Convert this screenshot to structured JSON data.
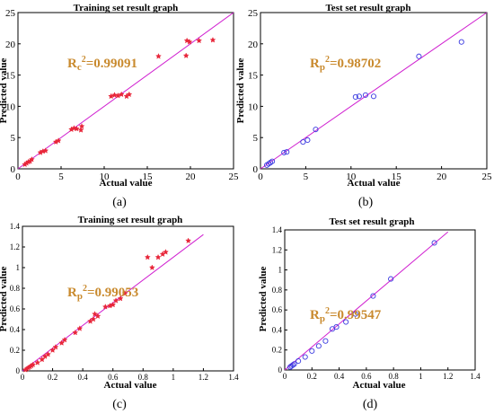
{
  "figure": {
    "captions": [
      "(a)",
      "(b)",
      "(c)",
      "(d)"
    ]
  },
  "colors": {
    "fit_line": "#d020d0",
    "train_marker": "#e8263a",
    "test_marker": "#3a3ae0",
    "r2_text": "#c98a2e"
  },
  "panels": [
    {
      "caption": "(a)",
      "r2_base": "R",
      "r2_sub": "c",
      "r2_value": "=0.99091"
    },
    {
      "caption": "(b)",
      "r2_base": "R",
      "r2_sub": "p",
      "r2_value": "=0.98702"
    },
    {
      "caption": "(c)",
      "r2_base": "R",
      "r2_sub": "p",
      "r2_value": "=0.99053"
    },
    {
      "caption": "(d)",
      "r2_base": "R",
      "r2_sub": "p",
      "r2_value": "=0.99547"
    }
  ],
  "chart_data": [
    {
      "type": "scatter",
      "title": "Training set result graph",
      "xlabel": "Actual value",
      "ylabel": "Predicted value",
      "xlim": [
        0,
        25
      ],
      "ylim": [
        0,
        25
      ],
      "xticks": [
        "0",
        "5",
        "10",
        "15",
        "20",
        "25"
      ],
      "yticks": [
        "0",
        "5",
        "10",
        "15",
        "20",
        "25"
      ],
      "marker": "star",
      "annotation": "Rc^2=0.99091",
      "fit_line": {
        "x0": 0,
        "y0": 0,
        "x1": 25,
        "y1": 25
      },
      "points": [
        [
          0.8,
          0.7
        ],
        [
          1.0,
          0.9
        ],
        [
          1.2,
          1.1
        ],
        [
          1.4,
          1.2
        ],
        [
          1.6,
          1.5
        ],
        [
          2.6,
          2.6
        ],
        [
          2.9,
          2.8
        ],
        [
          3.2,
          2.9
        ],
        [
          4.4,
          4.3
        ],
        [
          4.7,
          4.5
        ],
        [
          6.2,
          6.3
        ],
        [
          6.5,
          6.5
        ],
        [
          6.8,
          6.4
        ],
        [
          7.3,
          6.2
        ],
        [
          7.4,
          6.8
        ],
        [
          10.8,
          11.6
        ],
        [
          11.2,
          11.8
        ],
        [
          11.6,
          11.7
        ],
        [
          12.0,
          11.9
        ],
        [
          12.6,
          11.6
        ],
        [
          12.9,
          11.9
        ],
        [
          16.3,
          18.0
        ],
        [
          19.5,
          18.1
        ],
        [
          19.6,
          20.5
        ],
        [
          19.9,
          20.3
        ],
        [
          21.0,
          20.5
        ],
        [
          22.6,
          20.6
        ]
      ]
    },
    {
      "type": "scatter",
      "title": "Test set result graph",
      "xlabel": "Actual value",
      "ylabel": "Predicted value",
      "xlim": [
        0,
        25
      ],
      "ylim": [
        0,
        25
      ],
      "xticks": [
        "0",
        "5",
        "10",
        "15",
        "20",
        "25"
      ],
      "yticks": [
        "0",
        "5",
        "10",
        "15",
        "20",
        "25"
      ],
      "marker": "circle",
      "annotation": "Rp^2=0.98702",
      "fit_line": {
        "x0": 0,
        "y0": 0,
        "x1": 25,
        "y1": 25
      },
      "points": [
        [
          0.7,
          0.6
        ],
        [
          0.9,
          0.8
        ],
        [
          1.1,
          1.0
        ],
        [
          1.3,
          1.2
        ],
        [
          2.6,
          2.6
        ],
        [
          2.9,
          2.7
        ],
        [
          4.7,
          4.3
        ],
        [
          5.2,
          4.6
        ],
        [
          6.1,
          6.3
        ],
        [
          10.5,
          11.5
        ],
        [
          10.9,
          11.6
        ],
        [
          11.6,
          11.8
        ],
        [
          12.5,
          11.6
        ],
        [
          17.5,
          18.0
        ],
        [
          22.2,
          20.3
        ]
      ]
    },
    {
      "type": "scatter",
      "title": "Training set result graph",
      "xlabel": "Actual value",
      "ylabel": "Predicted value",
      "xlim": [
        0,
        1.4
      ],
      "ylim": [
        0,
        1.4
      ],
      "xticks": [
        "0",
        "0.2",
        "0.4",
        "0.6",
        "0.8",
        "1",
        "1.2",
        "1.4"
      ],
      "yticks": [
        "0",
        "0.2",
        "0.4",
        "0.6",
        "0.8",
        "1",
        "1.2",
        "1.4"
      ],
      "marker": "star",
      "annotation": "Rp^2=0.99053",
      "fit_line": {
        "x0": 0,
        "y0": 0,
        "x1": 1.2,
        "y1": 1.32
      },
      "points": [
        [
          0.02,
          0.01
        ],
        [
          0.03,
          0.02
        ],
        [
          0.04,
          0.03
        ],
        [
          0.05,
          0.04
        ],
        [
          0.06,
          0.05
        ],
        [
          0.07,
          0.06
        ],
        [
          0.1,
          0.08
        ],
        [
          0.13,
          0.11
        ],
        [
          0.15,
          0.14
        ],
        [
          0.17,
          0.16
        ],
        [
          0.2,
          0.2
        ],
        [
          0.22,
          0.23
        ],
        [
          0.26,
          0.27
        ],
        [
          0.28,
          0.3
        ],
        [
          0.35,
          0.37
        ],
        [
          0.38,
          0.41
        ],
        [
          0.45,
          0.48
        ],
        [
          0.47,
          0.5
        ],
        [
          0.48,
          0.55
        ],
        [
          0.5,
          0.53
        ],
        [
          0.55,
          0.62
        ],
        [
          0.58,
          0.63
        ],
        [
          0.6,
          0.64
        ],
        [
          0.62,
          0.68
        ],
        [
          0.65,
          0.7
        ],
        [
          0.68,
          0.75
        ],
        [
          0.83,
          1.1
        ],
        [
          0.86,
          1.0
        ],
        [
          0.9,
          1.1
        ],
        [
          0.93,
          1.13
        ],
        [
          0.95,
          1.15
        ],
        [
          1.1,
          1.26
        ]
      ]
    },
    {
      "type": "scatter",
      "title": "Test set result graph",
      "xlabel": "Actual value",
      "ylabel": "Predicted value",
      "xlim": [
        0,
        1.4
      ],
      "ylim": [
        0,
        1.4
      ],
      "xticks": [
        "0",
        "0.2",
        "0.4",
        "0.6",
        "0.8",
        "1",
        "1.2",
        "1.4"
      ],
      "yticks": [
        "0",
        "0.2",
        "0.4",
        "0.6",
        "0.8",
        "1",
        "1.2",
        "1.4"
      ],
      "marker": "circle",
      "annotation": "Rp^2=0.99547",
      "fit_line": {
        "x0": 0,
        "y0": 0,
        "x1": 1.2,
        "y1": 1.38
      },
      "points": [
        [
          0.04,
          0.03
        ],
        [
          0.05,
          0.04
        ],
        [
          0.06,
          0.05
        ],
        [
          0.07,
          0.06
        ],
        [
          0.1,
          0.09
        ],
        [
          0.15,
          0.13
        ],
        [
          0.2,
          0.19
        ],
        [
          0.25,
          0.24
        ],
        [
          0.3,
          0.29
        ],
        [
          0.35,
          0.41
        ],
        [
          0.38,
          0.43
        ],
        [
          0.45,
          0.48
        ],
        [
          0.52,
          0.56
        ],
        [
          0.65,
          0.74
        ],
        [
          0.78,
          0.91
        ],
        [
          1.1,
          1.27
        ]
      ]
    }
  ]
}
